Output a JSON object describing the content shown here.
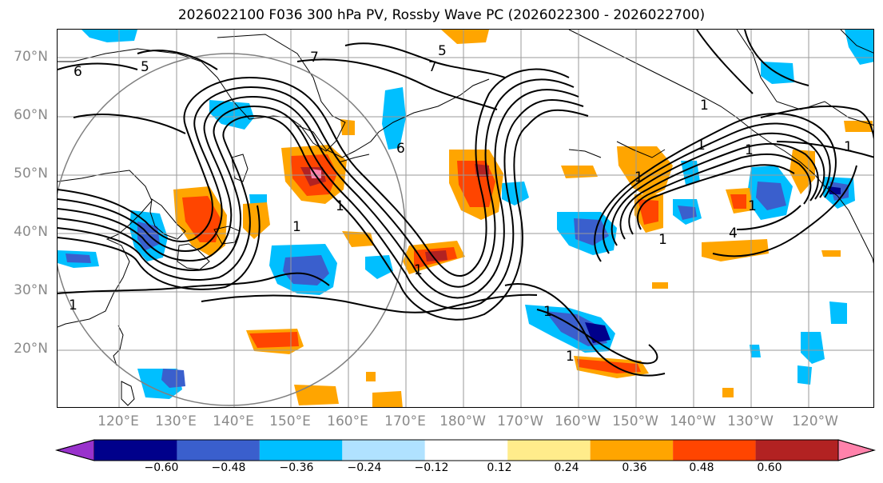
{
  "title": "2026022100 F036 300 hPa PV, Rossby Wave PC (2026022300 - 2026022700)",
  "lat_labels": [
    "70°N",
    "60°N",
    "50°N",
    "40°N",
    "30°N",
    "20°N"
  ],
  "lon_labels": [
    "120°E",
    "130°E",
    "140°E",
    "150°E",
    "160°E",
    "170°E",
    "180°W",
    "170°W",
    "160°W",
    "150°W",
    "140°W",
    "130°W",
    "120°W"
  ],
  "colorbar": {
    "labels": [
      "−0.60",
      "−0.48",
      "−0.36",
      "−0.24",
      "−0.12",
      "0.12",
      "0.24",
      "0.36",
      "0.48",
      "0.60"
    ],
    "colors": [
      "#9932cc",
      "#00008b",
      "#3a5fcd",
      "#00bfff",
      "#b0e2ff",
      "#ffffff",
      "#ffec8b",
      "#ffa500",
      "#ff4500",
      "#b22222",
      "#ff82ab"
    ],
    "extend": "both"
  },
  "contour_labels": [
    "6",
    "5",
    "7",
    "5",
    "7",
    "6",
    "4",
    "1",
    "1",
    "1",
    "1",
    "1",
    "1",
    "1",
    "1",
    "1",
    "1",
    "1",
    "1",
    "1"
  ]
}
